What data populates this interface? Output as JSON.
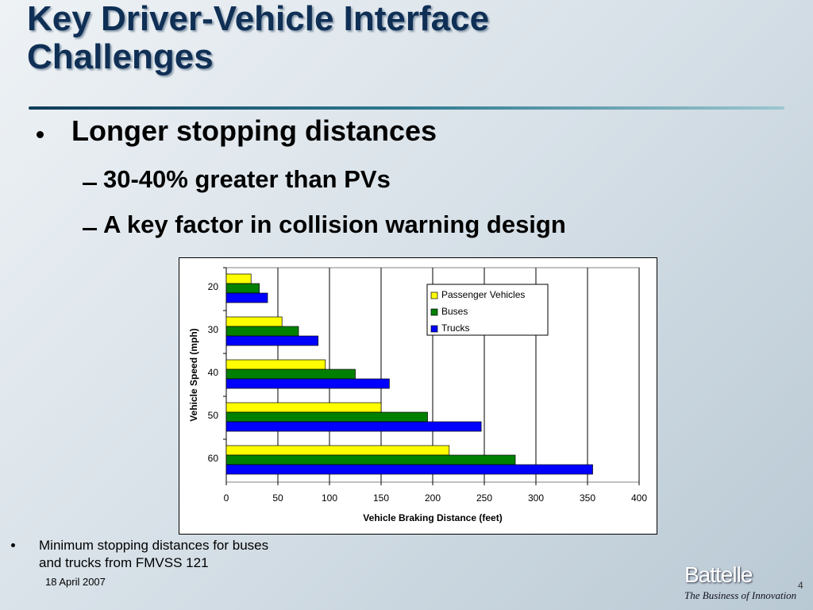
{
  "slide": {
    "title": "Key Driver-Vehicle Interface Challenges",
    "bullet": "Longer stopping distances",
    "sub_bullets": [
      "30-40% greater than PVs",
      "A key factor in collision warning design"
    ],
    "footnote": "Minimum stopping distances for buses and trucks from FMVSS 121",
    "date": "18 April 2007",
    "page_number": "4",
    "logo": "Battelle",
    "tagline": "The Business of Innovation"
  },
  "chart_data": {
    "type": "hbar",
    "categories": [
      "20",
      "30",
      "40",
      "50",
      "60"
    ],
    "series": [
      {
        "name": "Passenger Vehicles",
        "color": "#ffff00",
        "values": [
          24,
          54,
          96,
          150,
          216
        ]
      },
      {
        "name": "Buses",
        "color": "#008000",
        "values": [
          32,
          70,
          125,
          195,
          280
        ]
      },
      {
        "name": "Trucks",
        "color": "#0000ff",
        "values": [
          40,
          89,
          158,
          247,
          355
        ]
      }
    ],
    "xlabel": "Vehicle Braking Distance (feet)",
    "ylabel": "Vehicle Speed (mph)",
    "xlim": [
      0,
      400
    ],
    "xticks": [
      0,
      50,
      100,
      150,
      200,
      250,
      300,
      350,
      400
    ],
    "grid": true,
    "legend": "upper-right"
  }
}
